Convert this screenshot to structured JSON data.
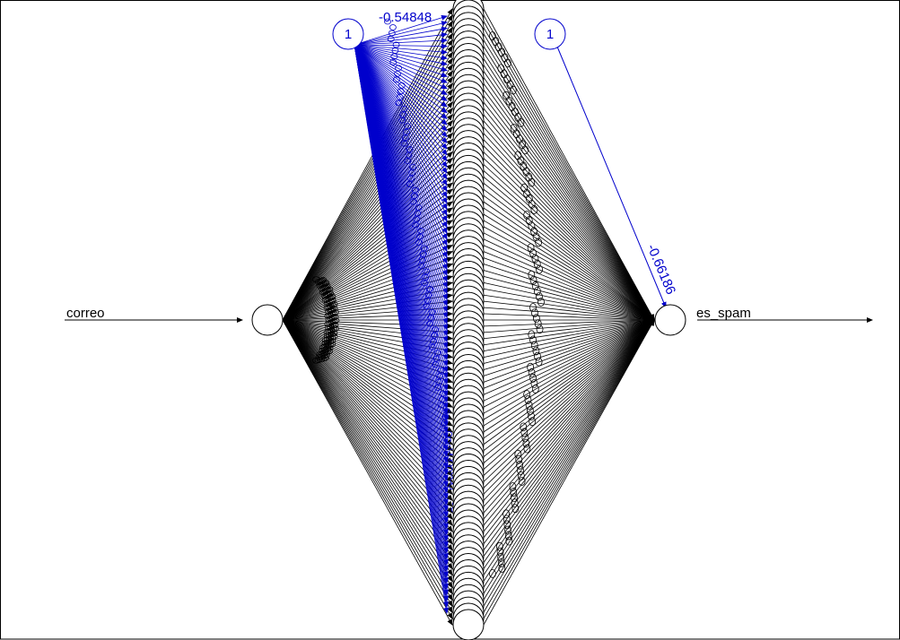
{
  "network": {
    "input_label": "correo",
    "output_label": "es_spam",
    "hidden_neuron_count": 100,
    "bias_label": "1",
    "bias_input_weight_visible": "-0.54848",
    "bias_output_weight": "-0.66186",
    "colors": {
      "connections": "#000000",
      "bias": "#0000cc",
      "nodes": "#000000",
      "frame": "#000000"
    }
  }
}
